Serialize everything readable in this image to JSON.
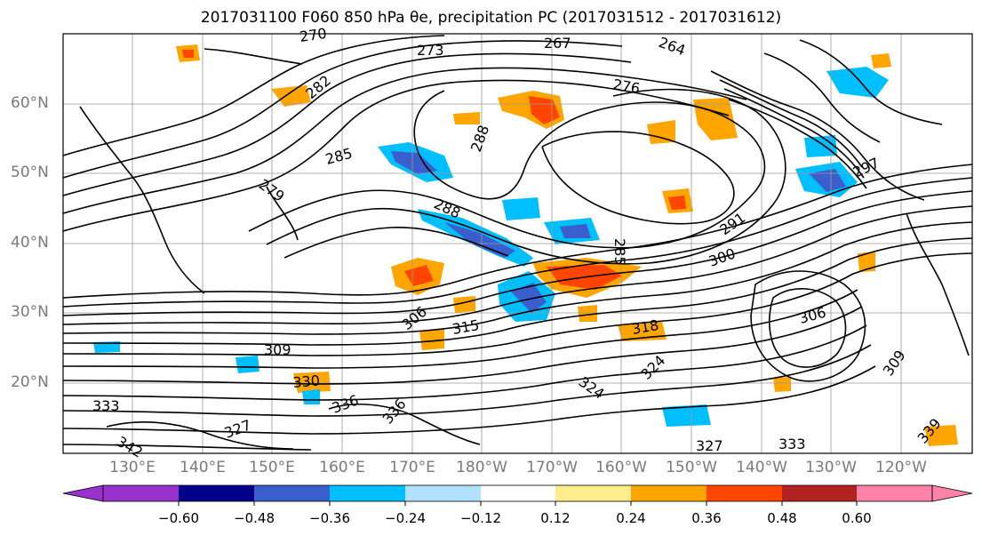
{
  "title": "2017031100 F060 850 hPa θe, precipitation PC (2017031512 - 2017031612)",
  "latitude_labels": [
    "60°N",
    "50°N",
    "40°N",
    "30°N",
    "20°N"
  ],
  "longitude_labels": [
    "130°E",
    "140°E",
    "150°E",
    "160°E",
    "170°E",
    "180°W",
    "170°W",
    "160°W",
    "150°W",
    "140°W",
    "130°W",
    "120°W"
  ],
  "contour_labels": [
    "270",
    "267",
    "273",
    "264",
    "276",
    "282",
    "288",
    "285",
    "279",
    "288",
    "285",
    "291",
    "300",
    "297",
    "306",
    "315",
    "309",
    "318",
    "306",
    "309",
    "324",
    "324",
    "330",
    "336",
    "333",
    "327",
    "333",
    "336",
    "327",
    "339",
    "342"
  ],
  "colorbar": {
    "ticks": [
      "−0.60",
      "−0.48",
      "−0.36",
      "−0.24",
      "−0.12",
      "0.12",
      "0.24",
      "0.36",
      "0.48",
      "0.60"
    ],
    "colors": [
      "#9932cc",
      "#00008b",
      "#3a5fcd",
      "#00bfff",
      "#b0e2ff",
      "#ffffff",
      "#ffec8b",
      "#ffa500",
      "#ff4500",
      "#b22222",
      "#ff82ab"
    ]
  }
}
